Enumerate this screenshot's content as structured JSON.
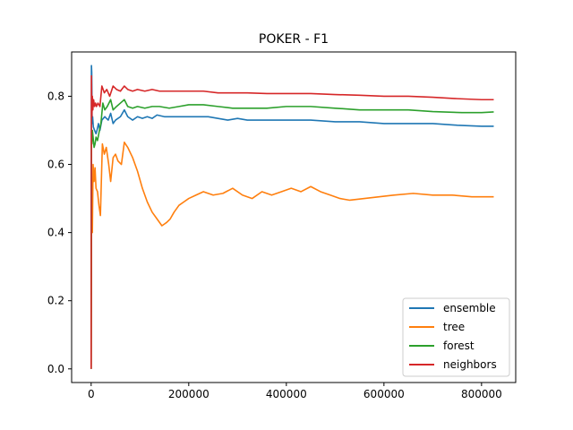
{
  "chart_data": {
    "type": "line",
    "title": "POKER - F1",
    "xlabel": "",
    "ylabel": "",
    "xlim": [
      -40000,
      870000
    ],
    "ylim": [
      -0.04,
      0.93
    ],
    "x_ticks": [
      0,
      200000,
      400000,
      600000,
      800000
    ],
    "x_tick_labels": [
      "0",
      "200000",
      "400000",
      "600000",
      "800000"
    ],
    "y_ticks": [
      0.0,
      0.2,
      0.4,
      0.6,
      0.8
    ],
    "y_tick_labels": [
      "0.0",
      "0.2",
      "0.4",
      "0.6",
      "0.8"
    ],
    "grid": false,
    "legend_position": "lower-right",
    "series": [
      {
        "name": "ensemble",
        "color": "#1f77b4",
        "points": [
          [
            0,
            0.0
          ],
          [
            600,
            0.89
          ],
          [
            1200,
            0.87
          ],
          [
            2000,
            0.72
          ],
          [
            3000,
            0.74
          ],
          [
            4500,
            0.71
          ],
          [
            7000,
            0.7
          ],
          [
            10000,
            0.69
          ],
          [
            12000,
            0.7
          ],
          [
            15000,
            0.72
          ],
          [
            18000,
            0.7
          ],
          [
            22000,
            0.73
          ],
          [
            28000,
            0.74
          ],
          [
            35000,
            0.73
          ],
          [
            40000,
            0.75
          ],
          [
            45000,
            0.72
          ],
          [
            50000,
            0.73
          ],
          [
            60000,
            0.74
          ],
          [
            68000,
            0.76
          ],
          [
            75000,
            0.74
          ],
          [
            85000,
            0.73
          ],
          [
            95000,
            0.74
          ],
          [
            105000,
            0.735
          ],
          [
            115000,
            0.74
          ],
          [
            125000,
            0.735
          ],
          [
            135000,
            0.745
          ],
          [
            150000,
            0.74
          ],
          [
            170000,
            0.74
          ],
          [
            190000,
            0.74
          ],
          [
            210000,
            0.74
          ],
          [
            240000,
            0.74
          ],
          [
            260000,
            0.735
          ],
          [
            280000,
            0.73
          ],
          [
            300000,
            0.735
          ],
          [
            320000,
            0.73
          ],
          [
            350000,
            0.73
          ],
          [
            400000,
            0.73
          ],
          [
            450000,
            0.73
          ],
          [
            500000,
            0.725
          ],
          [
            550000,
            0.725
          ],
          [
            600000,
            0.72
          ],
          [
            650000,
            0.72
          ],
          [
            700000,
            0.72
          ],
          [
            750000,
            0.715
          ],
          [
            800000,
            0.712
          ],
          [
            825000,
            0.712
          ]
        ]
      },
      {
        "name": "tree",
        "color": "#ff7f0e",
        "points": [
          [
            0,
            0.0
          ],
          [
            500,
            0.39
          ],
          [
            1200,
            0.45
          ],
          [
            2500,
            0.4
          ],
          [
            4000,
            0.6
          ],
          [
            6000,
            0.55
          ],
          [
            8000,
            0.59
          ],
          [
            10000,
            0.53
          ],
          [
            13000,
            0.52
          ],
          [
            16000,
            0.48
          ],
          [
            19000,
            0.45
          ],
          [
            23000,
            0.66
          ],
          [
            27000,
            0.63
          ],
          [
            31000,
            0.65
          ],
          [
            36000,
            0.6
          ],
          [
            40000,
            0.55
          ],
          [
            45000,
            0.62
          ],
          [
            50000,
            0.63
          ],
          [
            55000,
            0.61
          ],
          [
            62000,
            0.6
          ],
          [
            68000,
            0.665
          ],
          [
            75000,
            0.65
          ],
          [
            85000,
            0.62
          ],
          [
            95000,
            0.58
          ],
          [
            105000,
            0.53
          ],
          [
            115000,
            0.49
          ],
          [
            125000,
            0.46
          ],
          [
            135000,
            0.44
          ],
          [
            145000,
            0.42
          ],
          [
            150000,
            0.425
          ],
          [
            155000,
            0.43
          ],
          [
            162000,
            0.44
          ],
          [
            170000,
            0.46
          ],
          [
            180000,
            0.48
          ],
          [
            190000,
            0.49
          ],
          [
            200000,
            0.5
          ],
          [
            215000,
            0.51
          ],
          [
            230000,
            0.52
          ],
          [
            250000,
            0.51
          ],
          [
            270000,
            0.515
          ],
          [
            290000,
            0.53
          ],
          [
            310000,
            0.51
          ],
          [
            330000,
            0.5
          ],
          [
            350000,
            0.52
          ],
          [
            370000,
            0.51
          ],
          [
            390000,
            0.52
          ],
          [
            410000,
            0.53
          ],
          [
            430000,
            0.52
          ],
          [
            450000,
            0.535
          ],
          [
            470000,
            0.52
          ],
          [
            490000,
            0.51
          ],
          [
            510000,
            0.5
          ],
          [
            530000,
            0.495
          ],
          [
            560000,
            0.5
          ],
          [
            590000,
            0.505
          ],
          [
            620000,
            0.51
          ],
          [
            660000,
            0.515
          ],
          [
            700000,
            0.51
          ],
          [
            740000,
            0.51
          ],
          [
            780000,
            0.505
          ],
          [
            810000,
            0.505
          ],
          [
            825000,
            0.505
          ]
        ]
      },
      {
        "name": "forest",
        "color": "#2ca02c",
        "points": [
          [
            0,
            0.0
          ],
          [
            800,
            0.7
          ],
          [
            1500,
            0.66
          ],
          [
            2500,
            0.7
          ],
          [
            4000,
            0.68
          ],
          [
            6000,
            0.65
          ],
          [
            8000,
            0.66
          ],
          [
            10000,
            0.68
          ],
          [
            13000,
            0.67
          ],
          [
            17000,
            0.7
          ],
          [
            20000,
            0.72
          ],
          [
            24000,
            0.78
          ],
          [
            28000,
            0.76
          ],
          [
            33000,
            0.77
          ],
          [
            40000,
            0.79
          ],
          [
            45000,
            0.76
          ],
          [
            52000,
            0.77
          ],
          [
            60000,
            0.78
          ],
          [
            68000,
            0.79
          ],
          [
            75000,
            0.77
          ],
          [
            85000,
            0.765
          ],
          [
            95000,
            0.77
          ],
          [
            110000,
            0.765
          ],
          [
            125000,
            0.77
          ],
          [
            140000,
            0.77
          ],
          [
            160000,
            0.765
          ],
          [
            180000,
            0.77
          ],
          [
            200000,
            0.775
          ],
          [
            230000,
            0.775
          ],
          [
            260000,
            0.77
          ],
          [
            290000,
            0.765
          ],
          [
            320000,
            0.765
          ],
          [
            360000,
            0.765
          ],
          [
            400000,
            0.77
          ],
          [
            450000,
            0.77
          ],
          [
            500000,
            0.765
          ],
          [
            550000,
            0.76
          ],
          [
            600000,
            0.76
          ],
          [
            650000,
            0.76
          ],
          [
            700000,
            0.755
          ],
          [
            760000,
            0.752
          ],
          [
            800000,
            0.752
          ],
          [
            825000,
            0.754
          ]
        ]
      },
      {
        "name": "neighbors",
        "color": "#d62728",
        "points": [
          [
            0,
            0.0
          ],
          [
            600,
            0.86
          ],
          [
            1500,
            0.74
          ],
          [
            2500,
            0.8
          ],
          [
            3500,
            0.76
          ],
          [
            5000,
            0.79
          ],
          [
            7000,
            0.77
          ],
          [
            9000,
            0.78
          ],
          [
            11000,
            0.77
          ],
          [
            14000,
            0.78
          ],
          [
            18000,
            0.77
          ],
          [
            22000,
            0.83
          ],
          [
            27000,
            0.81
          ],
          [
            32000,
            0.82
          ],
          [
            38000,
            0.8
          ],
          [
            45000,
            0.83
          ],
          [
            52000,
            0.82
          ],
          [
            60000,
            0.815
          ],
          [
            68000,
            0.83
          ],
          [
            75000,
            0.82
          ],
          [
            85000,
            0.815
          ],
          [
            95000,
            0.82
          ],
          [
            110000,
            0.815
          ],
          [
            125000,
            0.82
          ],
          [
            140000,
            0.815
          ],
          [
            160000,
            0.815
          ],
          [
            180000,
            0.815
          ],
          [
            200000,
            0.815
          ],
          [
            230000,
            0.815
          ],
          [
            260000,
            0.81
          ],
          [
            290000,
            0.81
          ],
          [
            320000,
            0.81
          ],
          [
            360000,
            0.808
          ],
          [
            400000,
            0.808
          ],
          [
            450000,
            0.808
          ],
          [
            500000,
            0.805
          ],
          [
            550000,
            0.803
          ],
          [
            600000,
            0.8
          ],
          [
            650000,
            0.8
          ],
          [
            700000,
            0.797
          ],
          [
            750000,
            0.793
          ],
          [
            800000,
            0.79
          ],
          [
            825000,
            0.79
          ]
        ]
      }
    ]
  }
}
